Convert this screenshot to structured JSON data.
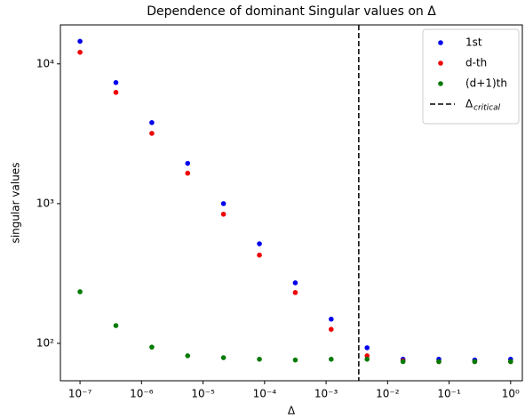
{
  "chart_data": {
    "type": "scatter",
    "title": "Dependence of dominant Singular values on Δ",
    "x_label": "Δ",
    "y_label": "singular values",
    "x_log": true,
    "y_log": true,
    "x": [
      1e-07,
      3.83e-07,
      1.47e-06,
      5.62e-06,
      2.15e-05,
      8.25e-05,
      0.000316,
      0.00121,
      0.00464,
      0.0178,
      0.0681,
      0.261,
      1
    ],
    "series": [
      {
        "name": "1st",
        "color": "#0000ee",
        "values": [
          14500,
          7350,
          3800,
          1940,
          1000,
          516,
          271,
          149,
          93,
          77,
          77,
          76,
          77
        ]
      },
      {
        "name": "d-th",
        "color": "#ee0000",
        "values": [
          12100,
          6250,
          3180,
          1650,
          840,
          428,
          231,
          126,
          81.5,
          75,
          74,
          74,
          74
        ]
      },
      {
        "name": "(d+1)th",
        "color": "#007a00",
        "values": [
          234,
          134,
          94,
          81.5,
          79,
          77,
          76,
          77,
          77,
          74,
          74,
          74,
          74
        ]
      }
    ],
    "vline": {
      "x": 0.0034,
      "color": "#000000",
      "legend": {
        "symbol": "Δ",
        "subscript": "critical"
      }
    },
    "xlim": [
      4.8e-08,
      1.55
    ],
    "ylim": [
      54,
      19000
    ],
    "xticks": [
      {
        "value": 1e-07,
        "label": "10⁻⁷"
      },
      {
        "value": 1e-06,
        "label": "10⁻⁶"
      },
      {
        "value": 1e-05,
        "label": "10⁻⁵"
      },
      {
        "value": 0.0001,
        "label": "10⁻⁴"
      },
      {
        "value": 0.001,
        "label": "10⁻³"
      },
      {
        "value": 0.01,
        "label": "10⁻²"
      },
      {
        "value": 0.1,
        "label": "10⁻¹"
      },
      {
        "value": 1,
        "label": "10⁰"
      }
    ],
    "yticks": [
      {
        "value": 100,
        "label": "10²"
      },
      {
        "value": 1000,
        "label": "10³"
      },
      {
        "value": 10000,
        "label": "10⁴"
      }
    ],
    "legend": "upper right",
    "grid": false
  }
}
